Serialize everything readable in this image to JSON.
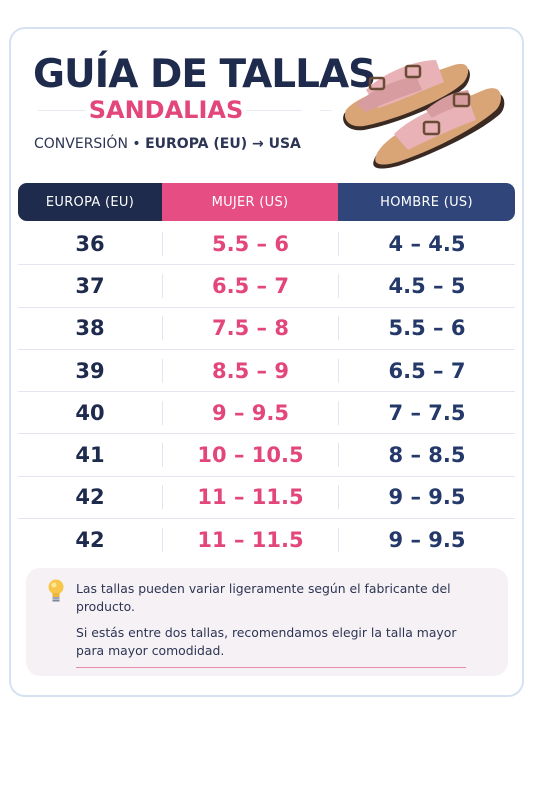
{
  "header": {
    "title": "GUÍA DE TALLAS",
    "subtitle": "SANDALIAS",
    "conversion_prefix": "CONVERSIÓN • ",
    "conversion_main": "EUROPA (EU) → USA"
  },
  "illustration": {
    "icon": "sandals-icon"
  },
  "table": {
    "headers": [
      "EUROPA (EU)",
      "MUJER (US)",
      "HOMBRE (US)"
    ],
    "rows": [
      [
        "36",
        "5.5 – 6",
        "4 – 4.5"
      ],
      [
        "37",
        "6.5 – 7",
        "4.5 – 5"
      ],
      [
        "38",
        "7.5 – 8",
        "5.5 – 6"
      ],
      [
        "39",
        "8.5 – 9",
        "6.5 – 7"
      ],
      [
        "40",
        "9 – 9.5",
        "7 – 7.5"
      ],
      [
        "41",
        "10 – 10.5",
        "8 – 8.5"
      ],
      [
        "42",
        "11 – 11.5",
        "9 – 9.5"
      ],
      [
        "42",
        "11 – 11.5",
        "9 – 9.5"
      ]
    ]
  },
  "note": {
    "icon": "lightbulb-icon",
    "text1": "Las tallas pueden variar ligeramente según el fabricante del producto.",
    "text2": "Si estás entre dos tallas, recomendamos elegir la talla mayor para mayor comodidad."
  },
  "colors": {
    "navy": "#1f2b4d",
    "pink": "#e2467b",
    "blue": "#30467a",
    "border": "#d6e2f2"
  }
}
